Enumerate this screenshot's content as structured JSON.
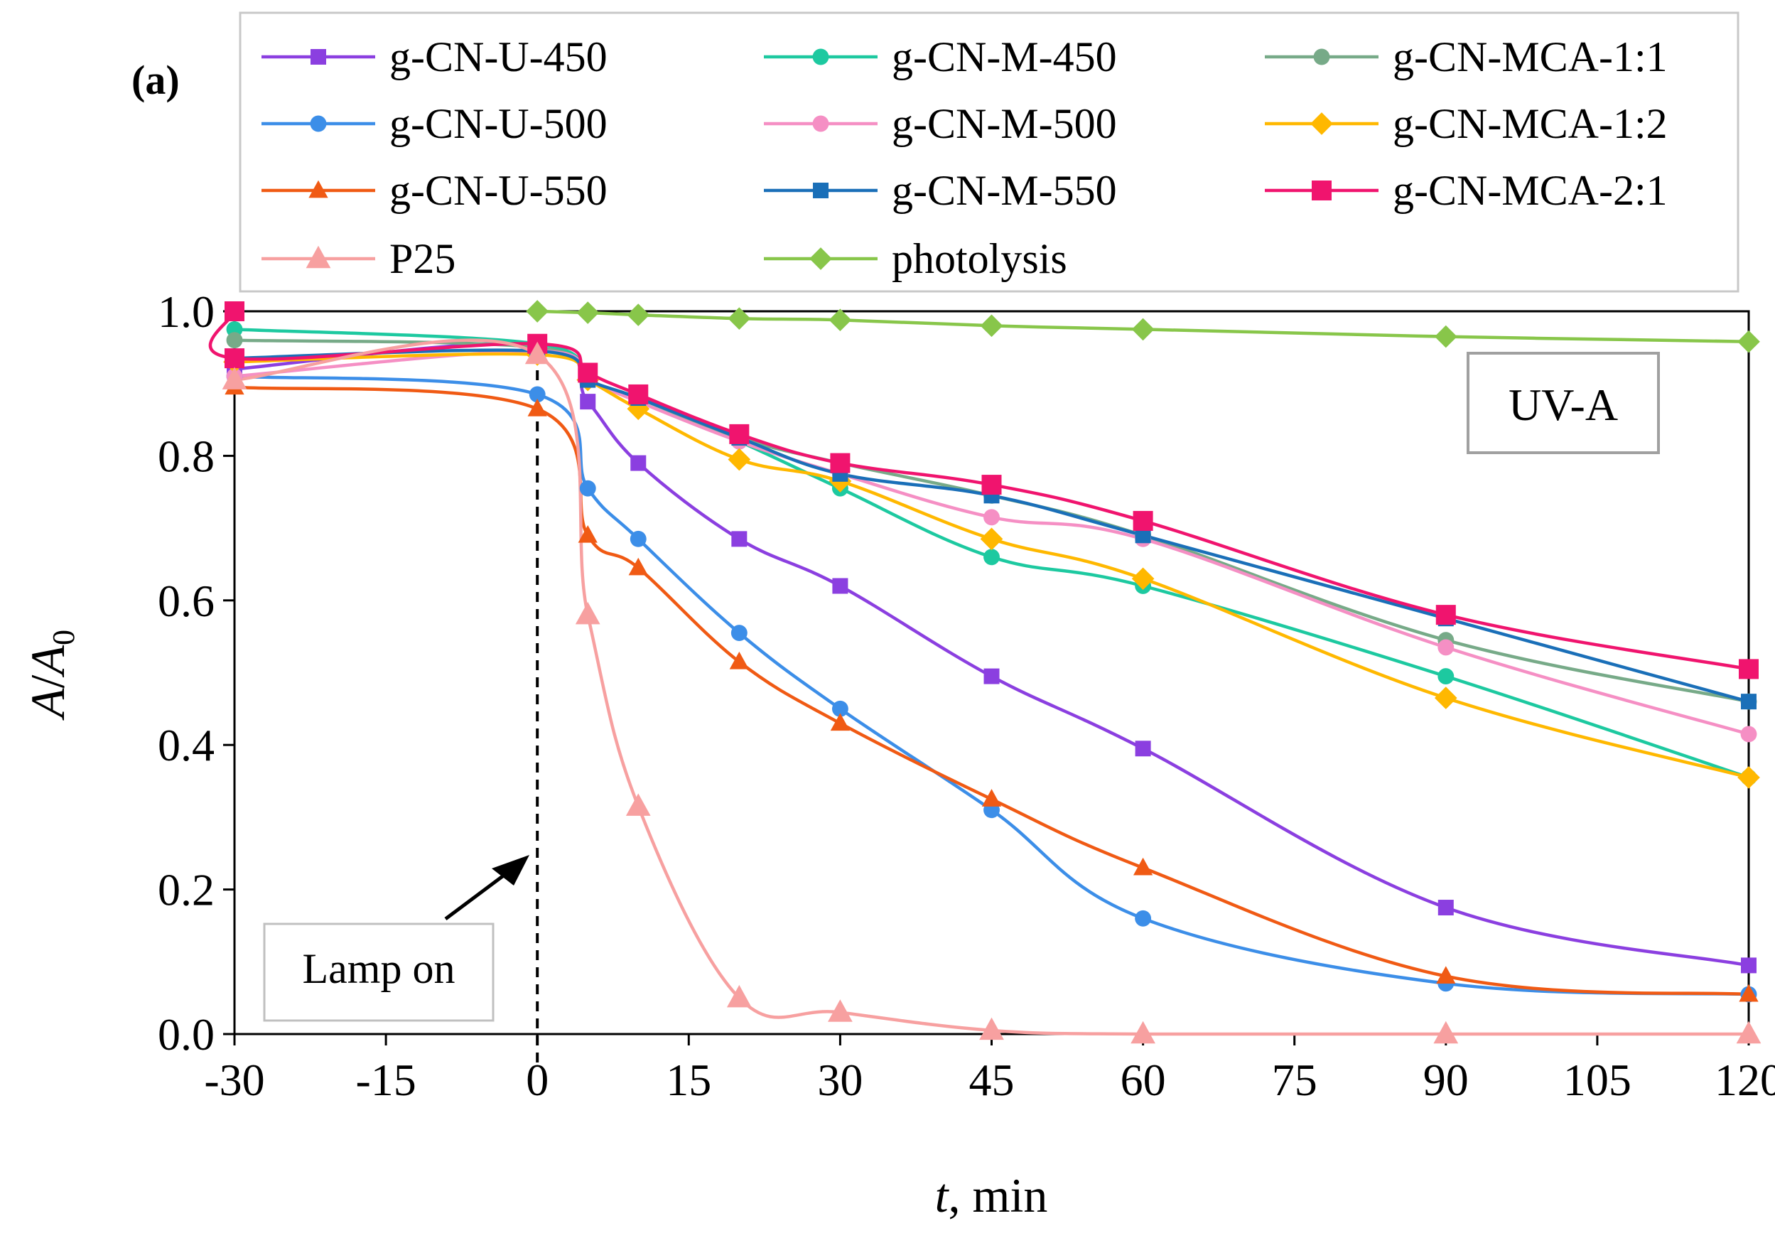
{
  "panel_label": "(a)",
  "chart_data": {
    "type": "line",
    "title": "",
    "annotation_box": "UV-A",
    "lamp_label": "Lamp on",
    "xlabel_italic": "t",
    "xlabel_rest": ", min",
    "ylabel_main": "A",
    "ylabel_denom": "A",
    "ylabel_sub": "0",
    "xlim": [
      -30,
      120
    ],
    "ylim": [
      0,
      1.0
    ],
    "x_ticks": [
      -30,
      -15,
      0,
      15,
      30,
      45,
      60,
      75,
      90,
      105,
      120
    ],
    "x_tick_labels": [
      "-30",
      "-15",
      "0",
      "15",
      "30",
      "45",
      "60",
      "75",
      "90",
      "105",
      "120"
    ],
    "y_ticks": [
      0,
      0.2,
      0.4,
      0.6,
      0.8,
      1.0
    ],
    "y_tick_labels": [
      "0.0",
      "0.2",
      "0.4",
      "0.6",
      "0.8",
      "1.0"
    ],
    "lamp_on_x": 0,
    "legend_position": "top",
    "series": [
      {
        "name": "g-CN-U-450",
        "color": "#8B3FE0",
        "marker": "square",
        "x": [
          -30,
          0,
          5,
          10,
          20,
          30,
          45,
          60,
          90,
          120
        ],
        "y": [
          0.92,
          0.955,
          0.875,
          0.79,
          0.685,
          0.62,
          0.495,
          0.395,
          0.175,
          0.095
        ]
      },
      {
        "name": "g-CN-M-450",
        "color": "#1DC9A0",
        "marker": "circle",
        "x": [
          -30,
          0,
          5,
          10,
          20,
          30,
          45,
          60,
          90,
          120
        ],
        "y": [
          0.975,
          0.955,
          0.905,
          0.88,
          0.82,
          0.755,
          0.66,
          0.62,
          0.495,
          0.355
        ]
      },
      {
        "name": "g-CN-MCA-1:1",
        "color": "#77AA88",
        "marker": "circle",
        "x": [
          -30,
          0,
          5,
          10,
          20,
          30,
          45,
          60,
          90,
          120
        ],
        "y": [
          0.96,
          0.95,
          0.905,
          0.88,
          0.825,
          0.79,
          0.745,
          0.69,
          0.545,
          0.46
        ]
      },
      {
        "name": "g-CN-U-500",
        "color": "#3C8EE8",
        "marker": "circle",
        "x": [
          -30,
          0,
          5,
          10,
          20,
          30,
          45,
          60,
          90,
          120
        ],
        "y": [
          0.91,
          0.885,
          0.755,
          0.685,
          0.555,
          0.45,
          0.31,
          0.16,
          0.07,
          0.055
        ]
      },
      {
        "name": "g-CN-M-500",
        "color": "#F58FC4",
        "marker": "circle",
        "x": [
          -30,
          0,
          5,
          10,
          20,
          30,
          45,
          60,
          90,
          120
        ],
        "y": [
          0.91,
          0.945,
          0.905,
          0.875,
          0.82,
          0.775,
          0.715,
          0.685,
          0.535,
          0.415
        ]
      },
      {
        "name": "g-CN-MCA-1:2",
        "color": "#FFB800",
        "marker": "diamond",
        "x": [
          -30,
          0,
          5,
          10,
          20,
          30,
          45,
          60,
          90,
          120
        ],
        "y": [
          0.93,
          0.94,
          0.905,
          0.865,
          0.795,
          0.765,
          0.685,
          0.63,
          0.465,
          0.355
        ]
      },
      {
        "name": "g-CN-U-550",
        "color": "#F05A14",
        "marker": "triangle",
        "x": [
          -30,
          0,
          5,
          10,
          20,
          30,
          45,
          60,
          90,
          120
        ],
        "y": [
          0.895,
          0.865,
          0.69,
          0.645,
          0.515,
          0.43,
          0.325,
          0.23,
          0.08,
          0.055
        ]
      },
      {
        "name": "g-CN-M-550",
        "color": "#1A6FB8",
        "marker": "square",
        "x": [
          -30,
          0,
          5,
          10,
          20,
          30,
          45,
          60,
          90,
          120
        ],
        "y": [
          0.935,
          0.945,
          0.905,
          0.88,
          0.825,
          0.775,
          0.745,
          0.69,
          0.575,
          0.46
        ]
      },
      {
        "name": "g-CN-MCA-2:1",
        "color": "#F0146E",
        "marker": "square",
        "x": [
          -30,
          -30,
          0,
          5,
          10,
          20,
          30,
          45,
          60,
          90,
          120
        ],
        "y": [
          1.0,
          0.935,
          0.955,
          0.915,
          0.885,
          0.83,
          0.79,
          0.76,
          0.71,
          0.58,
          0.505
        ]
      },
      {
        "name": "P25",
        "color": "#F7A0A0",
        "marker": "triangle",
        "x": [
          -30,
          0,
          5,
          10,
          20,
          30,
          45,
          60,
          90,
          120
        ],
        "y": [
          0.905,
          0.94,
          0.58,
          0.315,
          0.05,
          0.03,
          0.005,
          0.0,
          0.0,
          0.0
        ]
      },
      {
        "name": "photolysis",
        "color": "#88C64A",
        "marker": "diamond",
        "x": [
          0,
          5,
          10,
          20,
          30,
          45,
          60,
          90,
          120
        ],
        "y": [
          1.0,
          0.998,
          0.995,
          0.99,
          0.988,
          0.98,
          0.975,
          0.965,
          0.958
        ]
      }
    ]
  }
}
